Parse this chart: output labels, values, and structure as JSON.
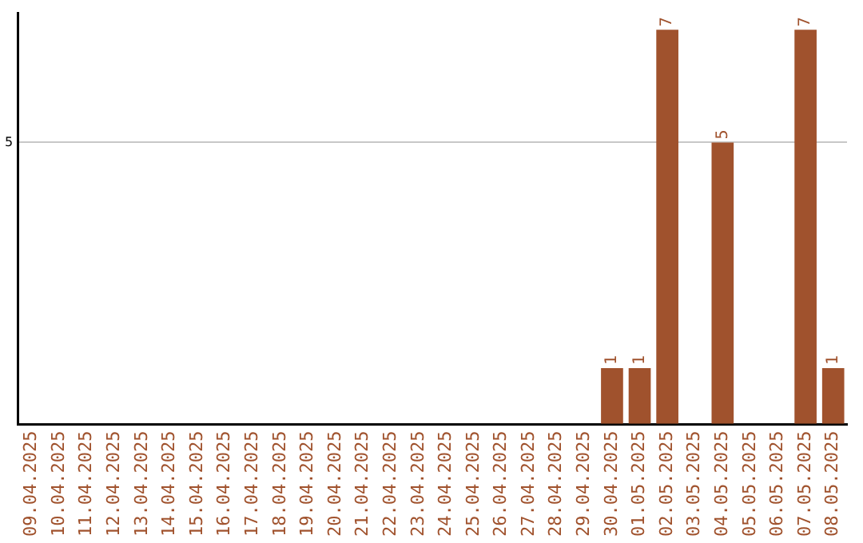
{
  "chart_data": {
    "type": "bar",
    "categories": [
      "09.04.2025",
      "10.04.2025",
      "11.04.2025",
      "12.04.2025",
      "13.04.2025",
      "14.04.2025",
      "15.04.2025",
      "16.04.2025",
      "17.04.2025",
      "18.04.2025",
      "19.04.2025",
      "20.04.2025",
      "21.04.2025",
      "22.04.2025",
      "23.04.2025",
      "24.04.2025",
      "25.04.2025",
      "26.04.2025",
      "27.04.2025",
      "28.04.2025",
      "29.04.2025",
      "30.04.2025",
      "01.05.2025",
      "02.05.2025",
      "03.05.2025",
      "04.05.2025",
      "05.05.2025",
      "06.05.2025",
      "07.05.2025",
      "08.05.2025"
    ],
    "values": [
      null,
      null,
      null,
      null,
      null,
      null,
      null,
      null,
      null,
      null,
      null,
      null,
      null,
      null,
      null,
      null,
      null,
      null,
      null,
      null,
      null,
      1,
      1,
      7,
      null,
      5,
      null,
      null,
      7,
      1
    ],
    "data_labels": true,
    "color": "#a0522d",
    "ylim": [
      0,
      7.3
    ],
    "yticks": [
      {
        "value": 0,
        "label": null
      },
      5
    ],
    "grid": "y",
    "legend": false
  }
}
